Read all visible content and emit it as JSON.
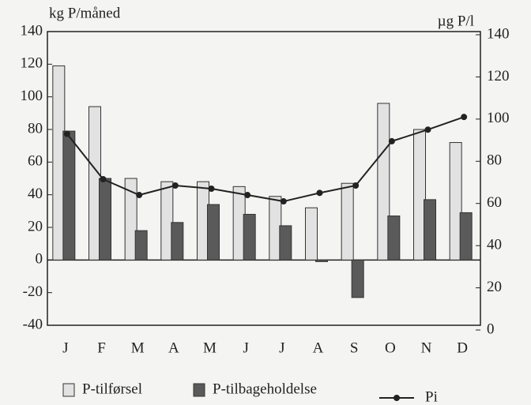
{
  "chart_data": {
    "type": "bar",
    "y_label": "kg P/måned",
    "y2_label": "µg P/l",
    "categories": [
      "J",
      "F",
      "M",
      "A",
      "M",
      "J",
      "J",
      "A",
      "S",
      "O",
      "N",
      "D"
    ],
    "series": [
      {
        "name": "P-tilførsel",
        "type": "bar",
        "color": "#e2e2e2",
        "values": [
          119,
          94,
          50,
          48,
          48,
          45,
          39,
          32,
          47,
          96,
          80,
          72
        ]
      },
      {
        "name": "P-tilbageholdelse",
        "type": "bar",
        "color": "#5a5a5a",
        "values": [
          79,
          50,
          18,
          23,
          34,
          28,
          21,
          -1,
          -23,
          27,
          37,
          29
        ]
      },
      {
        "name": "Pi",
        "type": "line",
        "axis": "y2",
        "color": "#222222",
        "values": [
          93,
          71.5,
          64,
          68.5,
          67,
          64,
          61,
          65,
          68.5,
          89.5,
          95,
          101
        ]
      }
    ],
    "ylim": [
      -40,
      140
    ],
    "yticks": [
      -40,
      -20,
      0,
      20,
      40,
      60,
      80,
      100,
      120,
      140
    ],
    "y2lim": [
      0,
      140
    ],
    "y2ticks": [
      0,
      20,
      40,
      60,
      80,
      100,
      120,
      140
    ],
    "legend": "bottom"
  }
}
